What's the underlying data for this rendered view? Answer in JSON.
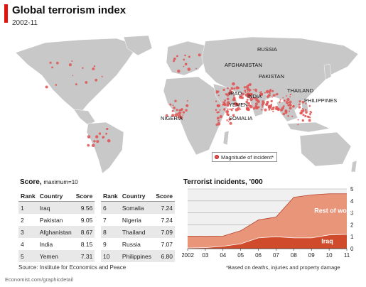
{
  "header": {
    "title": "Global terrorism index",
    "subtitle": "2002-11"
  },
  "map": {
    "labels": [
      "RUSSIA",
      "AFGHANISTAN",
      "PAKISTAN",
      "IRAQ",
      "INDIA",
      "THAILAND",
      "PHILIPPINES",
      "YEMEN",
      "NIGERIA",
      "SOMALIA"
    ],
    "legend": "Magnitude of incident*",
    "colors": {
      "land": "#c8c8c8",
      "dot": "#e05050"
    }
  },
  "score": {
    "title": "Score,",
    "subtitle": "maximum=10",
    "columns": [
      "Rank",
      "Country",
      "Score"
    ],
    "left": [
      {
        "rank": "1",
        "country": "Iraq",
        "score": "9.56"
      },
      {
        "rank": "2",
        "country": "Pakistan",
        "score": "9.05"
      },
      {
        "rank": "3",
        "country": "Afghanistan",
        "score": "8.67"
      },
      {
        "rank": "4",
        "country": "India",
        "score": "8.15"
      },
      {
        "rank": "5",
        "country": "Yemen",
        "score": "7.31"
      }
    ],
    "right": [
      {
        "rank": "6",
        "country": "Somalia",
        "score": "7.24"
      },
      {
        "rank": "7",
        "country": "Nigeria",
        "score": "7.24"
      },
      {
        "rank": "8",
        "country": "Thailand",
        "score": "7.09"
      },
      {
        "rank": "9",
        "country": "Russia",
        "score": "7.07"
      },
      {
        "rank": "10",
        "country": "Philippines",
        "score": "6.80"
      }
    ]
  },
  "chart_data": {
    "type": "area",
    "title": "Terrorist incidents, '000",
    "categories": [
      "2002",
      "03",
      "04",
      "05",
      "06",
      "07",
      "08",
      "09",
      "10",
      "11"
    ],
    "ylim": [
      0,
      5
    ],
    "yticks": [
      "0",
      "1",
      "2",
      "3",
      "4",
      "5"
    ],
    "series": [
      {
        "name": "Iraq",
        "values": [
          0.05,
          0.08,
          0.2,
          0.4,
          0.9,
          1.0,
          0.9,
          0.9,
          1.15,
          1.2
        ],
        "color": "#d04a2c"
      },
      {
        "name": "Rest of world",
        "values": [
          1.0,
          0.95,
          0.85,
          1.1,
          1.5,
          1.65,
          3.4,
          3.6,
          3.45,
          3.4
        ],
        "color": "#e8957a"
      }
    ],
    "grid": true
  },
  "footer": {
    "source": "Source: Institute for Economics and Peace",
    "footnote": "*Based on deaths, injuries and property damage",
    "credit": "Economist.com/graphicdetail"
  }
}
